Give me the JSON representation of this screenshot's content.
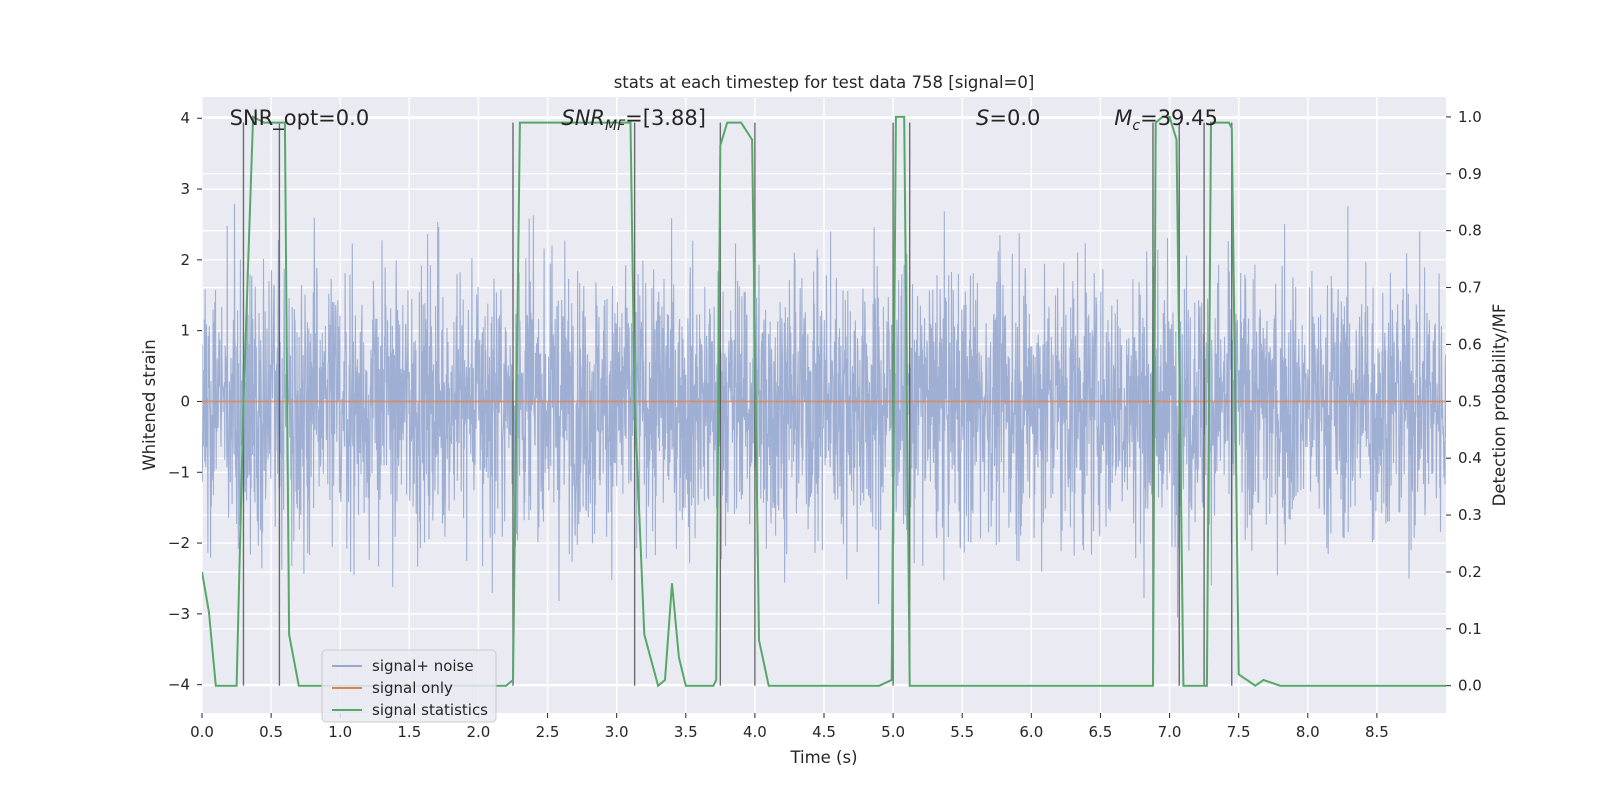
{
  "chart_data": {
    "type": "line",
    "title": "stats at each timestep for test data 758 [signal=0]",
    "xlabel": "Time (s)",
    "ylabel_left": "Whitened strain",
    "ylabel_right": "Detection probability/MF",
    "xlim": [
      0.0,
      9.0
    ],
    "ylim_left": [
      -4.4,
      4.3
    ],
    "ylim_right": [
      -0.048,
      1.035
    ],
    "x_ticks": [
      "0.0",
      "0.5",
      "1.0",
      "1.5",
      "2.0",
      "2.5",
      "3.0",
      "3.5",
      "4.0",
      "4.5",
      "5.0",
      "5.5",
      "6.0",
      "6.5",
      "7.0",
      "7.5",
      "8.0",
      "8.5"
    ],
    "y_ticks_left": [
      "−4",
      "−3",
      "−2",
      "−1",
      "0",
      "1",
      "2",
      "3",
      "4"
    ],
    "y_ticks_right": [
      "0.0",
      "0.1",
      "0.2",
      "0.3",
      "0.4",
      "0.5",
      "0.6",
      "0.7",
      "0.8",
      "0.9",
      "1.0"
    ],
    "grid": true,
    "legend_position": "lower-left",
    "annotations": [
      {
        "text": "SNR_opt=0.0",
        "x": 0.2,
        "y": 4.0
      },
      {
        "text": "SNR",
        "sub": "MF",
        "rest": "=[3.88]",
        "italic": true,
        "x": 2.6,
        "y": 4.0
      },
      {
        "text": "S",
        "rest": "=0.0",
        "italic": true,
        "x": 5.6,
        "y": 4.0
      },
      {
        "text": "M",
        "sub": "c",
        "rest": "=39.45",
        "italic": true,
        "x": 6.6,
        "y": 4.0
      }
    ],
    "series": [
      {
        "name": "signal+ noise",
        "color": "#97a9cf",
        "axis": "left",
        "kind": "noise",
        "x_range": [
          0.0,
          9.0
        ],
        "approx_abs_range": [
          -4.0,
          3.6
        ]
      },
      {
        "name": "signal only",
        "color": "#dd8452",
        "axis": "left",
        "x": [
          0.0,
          9.0
        ],
        "y": [
          0.0,
          0.0
        ]
      },
      {
        "name": "signal statistics",
        "color": "#55a868",
        "axis": "right",
        "x": [
          0.0,
          0.05,
          0.1,
          0.2,
          0.25,
          0.3,
          0.37,
          0.45,
          0.5,
          0.56,
          0.6,
          0.63,
          0.7,
          0.8,
          1.0,
          1.5,
          2.0,
          2.2,
          2.25,
          2.3,
          2.35,
          3.1,
          3.13,
          3.2,
          3.3,
          3.35,
          3.4,
          3.45,
          3.5,
          3.6,
          3.7,
          3.72,
          3.75,
          3.8,
          3.85,
          3.9,
          3.98,
          4.03,
          4.1,
          4.3,
          4.9,
          4.99,
          5.02,
          5.08,
          5.12,
          5.2,
          5.5,
          6.5,
          6.88,
          6.9,
          6.95,
          7.0,
          7.05,
          7.1,
          7.22,
          7.27,
          7.3,
          7.43,
          7.45,
          7.5,
          7.56,
          7.62,
          7.68,
          7.8,
          8.0,
          8.1,
          8.2,
          8.4,
          9.0
        ],
        "y": [
          0.2,
          0.13,
          0.0,
          0.0,
          0.0,
          0.5,
          1.0,
          0.99,
          0.99,
          0.99,
          0.99,
          0.09,
          0.0,
          0.0,
          0.0,
          0.0,
          0.0,
          0.0,
          0.01,
          0.99,
          0.99,
          0.99,
          0.5,
          0.09,
          0.0,
          0.01,
          0.18,
          0.05,
          0.0,
          0.0,
          0.0,
          0.01,
          0.95,
          0.99,
          0.99,
          0.99,
          0.96,
          0.08,
          0.0,
          0.0,
          0.0,
          0.01,
          1.0,
          1.0,
          0.0,
          0.0,
          0.0,
          0.0,
          0.0,
          0.99,
          1.0,
          1.0,
          0.96,
          0.0,
          0.0,
          0.0,
          0.99,
          0.99,
          0.98,
          0.02,
          0.01,
          0.0,
          0.01,
          0.0,
          0.0,
          0.0,
          0.0,
          0.0,
          0.0
        ]
      }
    ],
    "vertical_markers": [
      {
        "x": 0.3,
        "color": "#555555"
      },
      {
        "x": 0.56,
        "color": "#555555"
      },
      {
        "x": 2.25,
        "color": "#555555"
      },
      {
        "x": 3.13,
        "color": "#555555"
      },
      {
        "x": 3.75,
        "color": "#555555"
      },
      {
        "x": 4.0,
        "color": "#555555"
      },
      {
        "x": 5.0,
        "color": "#555555"
      },
      {
        "x": 5.12,
        "color": "#555555"
      },
      {
        "x": 6.88,
        "color": "#555555"
      },
      {
        "x": 7.07,
        "color": "#555555"
      },
      {
        "x": 7.25,
        "color": "#555555"
      },
      {
        "x": 7.45,
        "color": "#555555"
      }
    ],
    "colors": {
      "plot_background": "#eaeaf2",
      "grid": "#ffffff",
      "marker_line": "#555555"
    }
  }
}
